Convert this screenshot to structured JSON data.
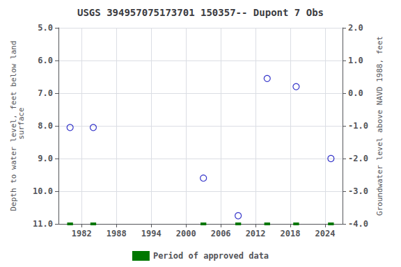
{
  "chart_data": {
    "type": "scatter",
    "title": "USGS 394957075173701 150357-- Dupont 7 Obs",
    "ylabel": "Depth to water level, feet below land\n surface",
    "y2label": "Groundwater level above NAVD 1988, feet",
    "series": [
      {
        "type": "scatter",
        "color": "#0000bb",
        "marker": "circle",
        "x": [
          1980,
          1984,
          2003,
          2009,
          2014,
          2019,
          2025
        ],
        "values": [
          8.05,
          8.05,
          9.6,
          10.75,
          6.55,
          6.8,
          9.0
        ]
      },
      {
        "name": "Period of approved data",
        "type": "bar",
        "color": "#007700",
        "x": [
          1980,
          1984,
          2003,
          2009,
          2014,
          2019,
          2025
        ],
        "values": [
          11.0,
          11.0,
          11.0,
          11.0,
          11.0,
          11.0,
          11.0
        ]
      }
    ],
    "xlim": [
      1978,
      2027
    ],
    "xticks": [
      1982,
      1988,
      1994,
      2000,
      2006,
      2012,
      2018,
      2024
    ],
    "ylim": [
      11.0,
      5.0
    ],
    "yticks": [
      {
        "value": 5,
        "label": "5.0"
      },
      {
        "value": 6,
        "label": "6.0"
      },
      {
        "value": 7,
        "label": "7.0"
      },
      {
        "value": 8,
        "label": "8.0"
      },
      {
        "value": 9,
        "label": "9.0"
      },
      {
        "value": 10,
        "label": "10.0"
      },
      {
        "value": 11,
        "label": "11.0"
      }
    ],
    "y2lim": [
      -4.0,
      2.0
    ],
    "y2ticks": [
      {
        "value": 2,
        "label": "2.0"
      },
      {
        "value": 1,
        "label": "1.0"
      },
      {
        "value": 0,
        "label": "0.0"
      },
      {
        "value": -1,
        "label": "-1.0"
      },
      {
        "value": -2,
        "label": "-2.0"
      },
      {
        "value": -3,
        "label": "-3.0"
      },
      {
        "value": -4,
        "label": "-4.0"
      }
    ],
    "grid": true,
    "legend": "bottom"
  }
}
